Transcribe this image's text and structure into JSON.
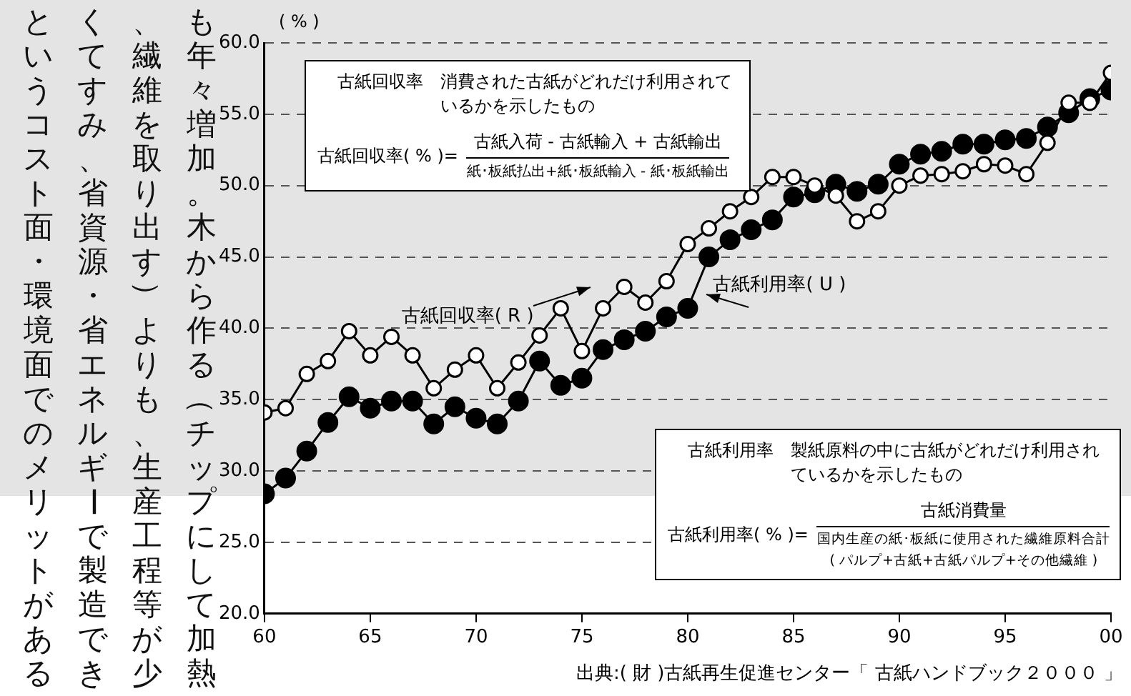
{
  "chart_data": {
    "type": "line",
    "ylabel": "( % )",
    "x": [
      1960,
      1961,
      1962,
      1963,
      1964,
      1965,
      1966,
      1967,
      1968,
      1969,
      1970,
      1971,
      1972,
      1973,
      1974,
      1975,
      1976,
      1977,
      1978,
      1979,
      1980,
      1981,
      1982,
      1983,
      1984,
      1985,
      1986,
      1987,
      1988,
      1989,
      1990,
      1991,
      1992,
      1993,
      1994,
      1995,
      1996,
      1997,
      1998,
      1999,
      2000
    ],
    "series": [
      {
        "name": "古紙回収率( R )",
        "color": "#000000",
        "values": [
          34.1,
          34.4,
          36.8,
          37.7,
          39.8,
          38.1,
          39.4,
          38.1,
          35.8,
          37.1,
          38.1,
          35.8,
          37.6,
          39.5,
          41.4,
          38.4,
          41.4,
          42.9,
          41.8,
          43.3,
          45.9,
          47.0,
          48.2,
          49.2,
          50.6,
          50.6,
          50.0,
          49.3,
          47.5,
          48.2,
          50.0,
          50.7,
          50.8,
          51.0,
          51.5,
          51.4,
          50.8,
          53.0,
          55.8,
          55.8,
          57.9
        ]
      },
      {
        "name": "古紙利用率( U )",
        "color": "#000000",
        "values": [
          28.4,
          29.5,
          31.4,
          33.4,
          35.2,
          34.4,
          34.9,
          34.9,
          33.3,
          34.5,
          33.7,
          33.3,
          34.9,
          37.7,
          36.0,
          36.5,
          38.5,
          39.2,
          39.8,
          40.8,
          41.4,
          45.0,
          46.2,
          46.9,
          47.6,
          49.2,
          49.5,
          50.1,
          49.6,
          50.1,
          51.5,
          52.2,
          52.4,
          52.9,
          52.9,
          53.2,
          53.3,
          54.1,
          55.1,
          56.1,
          56.7
        ]
      }
    ],
    "xlim": [
      1960,
      2000
    ],
    "xticks": [
      {
        "value": 1960,
        "label": "60"
      },
      {
        "value": 1965,
        "label": "65"
      },
      {
        "value": 1970,
        "label": "70"
      },
      {
        "value": 1975,
        "label": "75"
      },
      {
        "value": 1980,
        "label": "80"
      },
      {
        "value": 1985,
        "label": "85"
      },
      {
        "value": 1990,
        "label": "90"
      },
      {
        "value": 1995,
        "label": "95"
      },
      {
        "value": 2000,
        "label": "00"
      }
    ],
    "ylim": [
      20,
      60
    ],
    "yticks": [
      {
        "value": 20,
        "label": "20.0"
      },
      {
        "value": 25,
        "label": "25.0"
      },
      {
        "value": 30,
        "label": "30.0"
      },
      {
        "value": 35,
        "label": "35.0"
      },
      {
        "value": 40,
        "label": "40.0"
      },
      {
        "value": 45,
        "label": "45.0"
      },
      {
        "value": 50,
        "label": "50.0"
      },
      {
        "value": 55,
        "label": "55.0"
      },
      {
        "value": 60,
        "label": "60.0"
      }
    ],
    "grid": "y",
    "legend": false,
    "marker": "circle",
    "line_style": "solid",
    "annotations": [
      "も年々増加。木から作る（チップにして加熱",
      "、繊維を取り出す）よりも、生産工程等が少",
      "くてすみ、省資源・省エネルギーで製造でき",
      "というコスト面・環境面でのメリットがある",
      "古紙回収率",
      "消費された古紙がどれだけ利用されているかを示したもの",
      "古紙回収率( % )=",
      "古紙入荷 - 古紙輸入 + 古紙輸出",
      "紙･板紙払出+紙･板紙輸入 - 紙･板紙輸出",
      "古紙利用率",
      "製紙原料の中に古紙がどれだけ利用されているかを示したもの",
      "古紙利用率( % )=",
      "古紙消費量",
      "国内生産の紙･板紙に使用された繊維原料合計",
      "( パルプ+古紙+古紙パルプ+その他繊維 )",
      "出典:( 財 )古紙再生促進センター「 古紙ハンドブック２０００ 」"
    ]
  }
}
